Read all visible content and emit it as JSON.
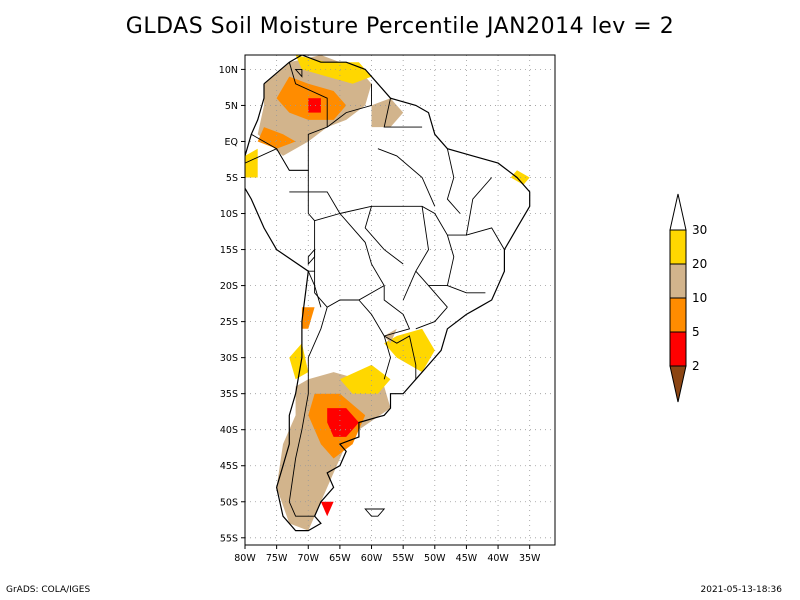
{
  "title": "GLDAS Soil Moisture Percentile JAN2014 lev = 2",
  "footer": {
    "left": "GrADS: COLA/IGES",
    "right": "2021-05-13-18:36"
  },
  "map": {
    "lon_range": [
      -80,
      -31
    ],
    "lat_range": [
      -56,
      12
    ],
    "lat_ticks": [
      {
        "value": 10,
        "label": "10N"
      },
      {
        "value": 5,
        "label": "5N"
      },
      {
        "value": 0,
        "label": "EQ"
      },
      {
        "value": -5,
        "label": "5S"
      },
      {
        "value": -10,
        "label": "10S"
      },
      {
        "value": -15,
        "label": "15S"
      },
      {
        "value": -20,
        "label": "20S"
      },
      {
        "value": -25,
        "label": "25S"
      },
      {
        "value": -30,
        "label": "30S"
      },
      {
        "value": -35,
        "label": "35S"
      },
      {
        "value": -40,
        "label": "40S"
      },
      {
        "value": -45,
        "label": "45S"
      },
      {
        "value": -50,
        "label": "50S"
      },
      {
        "value": -55,
        "label": "55S"
      }
    ],
    "lon_ticks": [
      {
        "value": -80,
        "label": "80W"
      },
      {
        "value": -75,
        "label": "75W"
      },
      {
        "value": -70,
        "label": "70W"
      },
      {
        "value": -65,
        "label": "65W"
      },
      {
        "value": -60,
        "label": "60W"
      },
      {
        "value": -55,
        "label": "55W"
      },
      {
        "value": -50,
        "label": "50W"
      },
      {
        "value": -45,
        "label": "45W"
      },
      {
        "value": -40,
        "label": "40W"
      },
      {
        "value": -35,
        "label": "35W"
      }
    ],
    "grid": true
  },
  "colorbar": {
    "levels": [
      {
        "label": "30"
      },
      {
        "label": "20"
      },
      {
        "label": "10"
      },
      {
        "label": "5"
      },
      {
        "label": "2"
      }
    ],
    "colors": {
      "above30": "#ffffff",
      "c20_30": "#ffd700",
      "c10_20": "#d2b48c",
      "c5_10": "#ff8c00",
      "c2_5": "#ff0000",
      "below2": "#8b4513"
    }
  },
  "regions": [
    {
      "category": "c10_20",
      "points": [
        [
          -73,
          11
        ],
        [
          -68,
          12
        ],
        [
          -62,
          10
        ],
        [
          -60,
          8
        ],
        [
          -61,
          5
        ],
        [
          -64,
          3
        ],
        [
          -67,
          2
        ],
        [
          -70,
          0
        ],
        [
          -74,
          -2
        ],
        [
          -78,
          1
        ],
        [
          -77,
          5
        ],
        [
          -77,
          8
        ]
      ]
    },
    {
      "category": "c20_30",
      "points": [
        [
          -72,
          12
        ],
        [
          -67,
          11
        ],
        [
          -62,
          11
        ],
        [
          -60,
          9
        ],
        [
          -63,
          8
        ],
        [
          -67,
          9
        ],
        [
          -71,
          10
        ]
      ]
    },
    {
      "category": "c5_10",
      "points": [
        [
          -73,
          9
        ],
        [
          -70,
          8
        ],
        [
          -66,
          7
        ],
        [
          -64,
          5
        ],
        [
          -66,
          3
        ],
        [
          -70,
          3
        ],
        [
          -73,
          4
        ],
        [
          -75,
          6
        ]
      ]
    },
    {
      "category": "c2_5",
      "points": [
        [
          -70,
          6
        ],
        [
          -68,
          6
        ],
        [
          -68,
          4
        ],
        [
          -70,
          4
        ]
      ]
    },
    {
      "category": "c5_10",
      "points": [
        [
          -77,
          2
        ],
        [
          -74,
          1
        ],
        [
          -72,
          0
        ],
        [
          -75,
          -1
        ],
        [
          -78,
          0
        ]
      ]
    },
    {
      "category": "c10_20",
      "points": [
        [
          -60,
          5
        ],
        [
          -57,
          6
        ],
        [
          -55,
          4
        ],
        [
          -57,
          2
        ],
        [
          -60,
          2
        ]
      ]
    },
    {
      "category": "c20_30",
      "points": [
        [
          -80,
          -2
        ],
        [
          -78,
          -1
        ],
        [
          -78,
          -5
        ],
        [
          -80,
          -5
        ]
      ]
    },
    {
      "category": "c20_30",
      "points": [
        [
          -37,
          -4
        ],
        [
          -35,
          -5
        ],
        [
          -36,
          -6
        ],
        [
          -38,
          -5
        ]
      ]
    },
    {
      "category": "c20_30",
      "points": [
        [
          -56,
          -27
        ],
        [
          -52,
          -26
        ],
        [
          -50,
          -29
        ],
        [
          -52,
          -32
        ],
        [
          -56,
          -30
        ],
        [
          -58,
          -28
        ]
      ]
    },
    {
      "category": "c10_20",
      "points": [
        [
          -58,
          -27
        ],
        [
          -56,
          -26
        ],
        [
          -57,
          -28
        ]
      ]
    },
    {
      "category": "c10_20",
      "points": [
        [
          -70,
          -33
        ],
        [
          -66,
          -32
        ],
        [
          -62,
          -33
        ],
        [
          -58,
          -34
        ],
        [
          -57,
          -37
        ],
        [
          -62,
          -40
        ],
        [
          -64,
          -42
        ],
        [
          -66,
          -46
        ],
        [
          -68,
          -50
        ],
        [
          -70,
          -54
        ],
        [
          -73,
          -53
        ],
        [
          -75,
          -48
        ],
        [
          -74,
          -42
        ],
        [
          -72,
          -38
        ],
        [
          -72,
          -34
        ]
      ]
    },
    {
      "category": "c20_30",
      "points": [
        [
          -65,
          -33
        ],
        [
          -60,
          -31
        ],
        [
          -57,
          -33
        ],
        [
          -59,
          -35
        ],
        [
          -63,
          -35
        ]
      ]
    },
    {
      "category": "c5_10",
      "points": [
        [
          -69,
          -35
        ],
        [
          -65,
          -35
        ],
        [
          -61,
          -38
        ],
        [
          -63,
          -42
        ],
        [
          -66,
          -44
        ],
        [
          -68,
          -42
        ],
        [
          -70,
          -38
        ]
      ]
    },
    {
      "category": "c2_5",
      "points": [
        [
          -67,
          -37
        ],
        [
          -64,
          -37
        ],
        [
          -62,
          -39
        ],
        [
          -64,
          -41
        ],
        [
          -66,
          -41
        ],
        [
          -67,
          -39
        ]
      ]
    },
    {
      "category": "c5_10",
      "points": [
        [
          -71,
          -23
        ],
        [
          -69,
          -23
        ],
        [
          -70,
          -26
        ],
        [
          -71,
          -26
        ]
      ]
    },
    {
      "category": "c20_30",
      "points": [
        [
          -73,
          -30
        ],
        [
          -71,
          -28
        ],
        [
          -70,
          -32
        ],
        [
          -72,
          -33
        ]
      ]
    },
    {
      "category": "c2_5",
      "points": [
        [
          -68,
          -50
        ],
        [
          -66,
          -50
        ],
        [
          -67,
          -52
        ]
      ]
    }
  ],
  "coast": [
    [
      -77,
      8
    ],
    [
      -73,
      11
    ],
    [
      -71,
      12
    ],
    [
      -68,
      11
    ],
    [
      -64,
      11
    ],
    [
      -61,
      10
    ],
    [
      -59,
      8
    ],
    [
      -57,
      6
    ],
    [
      -53,
      5
    ],
    [
      -51,
      4
    ],
    [
      -50,
      1
    ],
    [
      -48,
      -1
    ],
    [
      -44,
      -2
    ],
    [
      -40,
      -3
    ],
    [
      -37,
      -5
    ],
    [
      -35,
      -7
    ],
    [
      -35,
      -9
    ],
    [
      -37,
      -12
    ],
    [
      -39,
      -15
    ],
    [
      -39,
      -18
    ],
    [
      -41,
      -22
    ],
    [
      -43,
      -23
    ],
    [
      -45,
      -24
    ],
    [
      -48,
      -26
    ],
    [
      -49,
      -29
    ],
    [
      -51,
      -31
    ],
    [
      -53,
      -33
    ],
    [
      -55,
      -35
    ],
    [
      -57,
      -35
    ],
    [
      -57,
      -37
    ],
    [
      -58,
      -38
    ],
    [
      -62,
      -39
    ],
    [
      -62,
      -41
    ],
    [
      -65,
      -42
    ],
    [
      -64,
      -43
    ],
    [
      -65,
      -45
    ],
    [
      -67,
      -46
    ],
    [
      -66,
      -48
    ],
    [
      -68,
      -50
    ],
    [
      -69,
      -52
    ],
    [
      -68,
      -53
    ],
    [
      -70,
      -54
    ],
    [
      -72,
      -54
    ],
    [
      -74,
      -52
    ],
    [
      -75,
      -48
    ],
    [
      -74,
      -45
    ],
    [
      -73,
      -42
    ],
    [
      -73,
      -38
    ],
    [
      -72,
      -35
    ],
    [
      -71,
      -30
    ],
    [
      -71,
      -25
    ],
    [
      -70,
      -18
    ],
    [
      -75,
      -15
    ],
    [
      -77,
      -12
    ],
    [
      -79,
      -8
    ],
    [
      -81,
      -5
    ],
    [
      -80,
      -2
    ],
    [
      -79,
      1
    ],
    [
      -78,
      3
    ],
    [
      -77,
      6
    ],
    [
      -77,
      8
    ]
  ],
  "borders": [
    [
      [
        -73,
        11
      ],
      [
        -72,
        8
      ],
      [
        -67,
        6
      ],
      [
        -67,
        2
      ],
      [
        -70,
        1
      ],
      [
        -70,
        -4
      ],
      [
        -73,
        -4
      ],
      [
        -75,
        -1
      ],
      [
        -79,
        1
      ]
    ],
    [
      [
        -60,
        8
      ],
      [
        -60,
        5
      ],
      [
        -64,
        4
      ],
      [
        -67,
        2
      ]
    ],
    [
      [
        -57,
        6
      ],
      [
        -58,
        2
      ],
      [
        -56,
        2
      ],
      [
        -54,
        2
      ],
      [
        -52,
        2
      ]
    ],
    [
      [
        -80,
        -3
      ],
      [
        -75,
        -1
      ],
      [
        -73,
        -4
      ],
      [
        -70,
        -4
      ],
      [
        -70,
        -10
      ],
      [
        -69,
        -11
      ],
      [
        -69,
        -15
      ],
      [
        -69,
        -18
      ],
      [
        -70,
        -18
      ]
    ],
    [
      [
        -69,
        -11
      ],
      [
        -65,
        -10
      ],
      [
        -61,
        -14
      ],
      [
        -60,
        -17
      ],
      [
        -58,
        -20
      ],
      [
        -62,
        -22
      ],
      [
        -65,
        -22
      ],
      [
        -67,
        -23
      ],
      [
        -69,
        -21
      ],
      [
        -69,
        -18
      ]
    ],
    [
      [
        -58,
        -20
      ],
      [
        -58,
        -22
      ],
      [
        -55,
        -24
      ],
      [
        -54,
        -26
      ],
      [
        -58,
        -27
      ],
      [
        -60,
        -24
      ],
      [
        -62,
        -22
      ]
    ],
    [
      [
        -58,
        -27
      ],
      [
        -56,
        -28
      ],
      [
        -54,
        -27
      ],
      [
        -53,
        -31
      ],
      [
        -53,
        -33
      ]
    ],
    [
      [
        -58,
        -27
      ],
      [
        -57,
        -30
      ],
      [
        -58,
        -33
      ]
    ],
    [
      [
        -67,
        -23
      ],
      [
        -68,
        -26
      ],
      [
        -70,
        -30
      ],
      [
        -70,
        -35
      ],
      [
        -71,
        -40
      ],
      [
        -72,
        -44
      ],
      [
        -73,
        -50
      ],
      [
        -72,
        -52
      ],
      [
        -69,
        -52
      ]
    ],
    [
      [
        -70,
        -18
      ],
      [
        -69,
        -20
      ],
      [
        -68,
        -23
      ]
    ],
    [
      [
        -65,
        -10
      ],
      [
        -60,
        -9
      ],
      [
        -58,
        -9
      ],
      [
        -52,
        -9
      ],
      [
        -50,
        -10
      ],
      [
        -48,
        -13
      ],
      [
        -45,
        -13
      ]
    ],
    [
      [
        -60,
        -9
      ],
      [
        -61,
        -12
      ],
      [
        -58,
        -15
      ],
      [
        -55,
        -17
      ]
    ],
    [
      [
        -52,
        -9
      ],
      [
        -51,
        -15
      ],
      [
        -53,
        -18
      ],
      [
        -55,
        -22
      ]
    ],
    [
      [
        -48,
        -13
      ],
      [
        -47,
        -16
      ],
      [
        -48,
        -20
      ],
      [
        -51,
        -20
      ],
      [
        -53,
        -18
      ]
    ],
    [
      [
        -45,
        -13
      ],
      [
        -41,
        -12
      ],
      [
        -39,
        -15
      ]
    ],
    [
      [
        -45,
        -13
      ],
      [
        -44,
        -8
      ],
      [
        -41,
        -5
      ]
    ],
    [
      [
        -48,
        -1
      ],
      [
        -47,
        -5
      ],
      [
        -48,
        -8
      ],
      [
        -46,
        -10
      ]
    ],
    [
      [
        -59,
        -1
      ],
      [
        -56,
        -2
      ],
      [
        -52,
        -5
      ],
      [
        -50,
        -9
      ]
    ],
    [
      [
        -65,
        -10
      ],
      [
        -67,
        -7
      ],
      [
        -70,
        -7
      ],
      [
        -73,
        -7
      ]
    ],
    [
      [
        -48,
        -20
      ],
      [
        -45,
        -21
      ],
      [
        -42,
        -21
      ]
    ],
    [
      [
        -53,
        -26
      ],
      [
        -50,
        -25
      ],
      [
        -48,
        -23
      ]
    ],
    [
      [
        -51,
        -20
      ],
      [
        -48,
        -23
      ]
    ]
  ],
  "lakes": [
    [
      [
        -70,
        -16
      ],
      [
        -69,
        -15
      ],
      [
        -69,
        -16
      ],
      [
        -70,
        -17
      ]
    ],
    [
      [
        -72,
        10
      ],
      [
        -71,
        9
      ],
      [
        -71,
        10
      ]
    ],
    [
      [
        -58,
        -51
      ],
      [
        -59,
        -52
      ],
      [
        -60,
        -52
      ],
      [
        -61,
        -51
      ]
    ]
  ]
}
